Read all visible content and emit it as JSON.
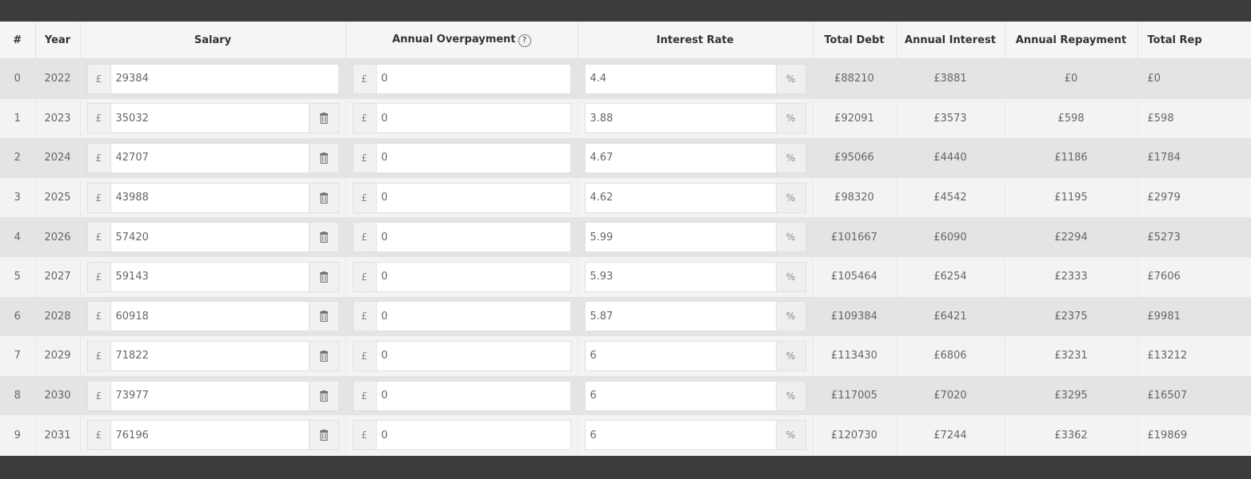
{
  "columns": {
    "index": "#",
    "year": "Year",
    "salary": "Salary",
    "overpayment": "Annual Overpayment",
    "overpayment_help": "?",
    "interest_rate": "Interest Rate",
    "total_debt": "Total Debt",
    "annual_interest": "Annual Interest",
    "annual_repayment": "Annual Repayment",
    "total_repaid": "Total Rep"
  },
  "currency_symbol": "£",
  "percent_symbol": "%",
  "rows": [
    {
      "index": "0",
      "year": "2022",
      "salary": "29384",
      "overpayment": "0",
      "rate": "4.4",
      "total_debt": "£88210",
      "annual_interest": "£3881",
      "annual_repayment": "£0",
      "total_repaid": "£0",
      "deletable": false
    },
    {
      "index": "1",
      "year": "2023",
      "salary": "35032",
      "overpayment": "0",
      "rate": "3.88",
      "total_debt": "£92091",
      "annual_interest": "£3573",
      "annual_repayment": "£598",
      "total_repaid": "£598",
      "deletable": true
    },
    {
      "index": "2",
      "year": "2024",
      "salary": "42707",
      "overpayment": "0",
      "rate": "4.67",
      "total_debt": "£95066",
      "annual_interest": "£4440",
      "annual_repayment": "£1186",
      "total_repaid": "£1784",
      "deletable": true
    },
    {
      "index": "3",
      "year": "2025",
      "salary": "43988",
      "overpayment": "0",
      "rate": "4.62",
      "total_debt": "£98320",
      "annual_interest": "£4542",
      "annual_repayment": "£1195",
      "total_repaid": "£2979",
      "deletable": true
    },
    {
      "index": "4",
      "year": "2026",
      "salary": "57420",
      "overpayment": "0",
      "rate": "5.99",
      "total_debt": "£101667",
      "annual_interest": "£6090",
      "annual_repayment": "£2294",
      "total_repaid": "£5273",
      "deletable": true
    },
    {
      "index": "5",
      "year": "2027",
      "salary": "59143",
      "overpayment": "0",
      "rate": "5.93",
      "total_debt": "£105464",
      "annual_interest": "£6254",
      "annual_repayment": "£2333",
      "total_repaid": "£7606",
      "deletable": true
    },
    {
      "index": "6",
      "year": "2028",
      "salary": "60918",
      "overpayment": "0",
      "rate": "5.87",
      "total_debt": "£109384",
      "annual_interest": "£6421",
      "annual_repayment": "£2375",
      "total_repaid": "£9981",
      "deletable": true
    },
    {
      "index": "7",
      "year": "2029",
      "salary": "71822",
      "overpayment": "0",
      "rate": "6",
      "total_debt": "£113430",
      "annual_interest": "£6806",
      "annual_repayment": "£3231",
      "total_repaid": "£13212",
      "deletable": true
    },
    {
      "index": "8",
      "year": "2030",
      "salary": "73977",
      "overpayment": "0",
      "rate": "6",
      "total_debt": "£117005",
      "annual_interest": "£7020",
      "annual_repayment": "£3295",
      "total_repaid": "£16507",
      "deletable": true
    },
    {
      "index": "9",
      "year": "2031",
      "salary": "76196",
      "overpayment": "0",
      "rate": "6",
      "total_debt": "£120730",
      "annual_interest": "£7244",
      "annual_repayment": "£3362",
      "total_repaid": "£19869",
      "deletable": true
    }
  ]
}
